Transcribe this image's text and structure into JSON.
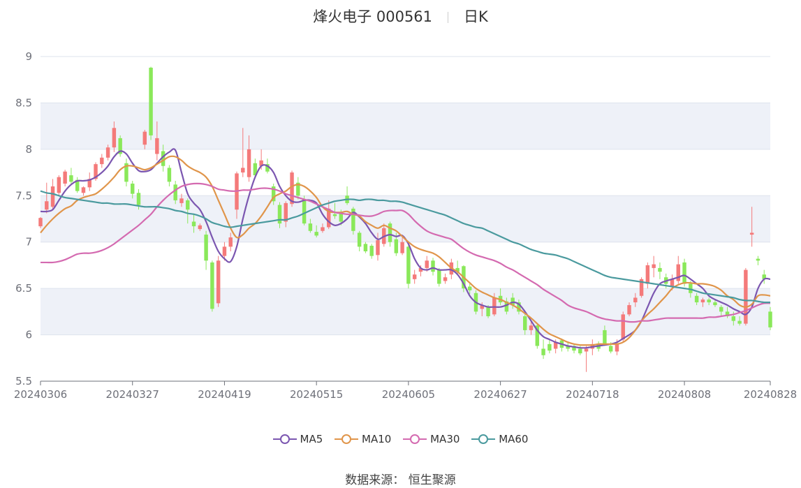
{
  "header": {
    "title": "烽火电子 000561",
    "period": "日K"
  },
  "source": {
    "label": "数据来源：",
    "value": "恒生聚源"
  },
  "colors": {
    "up": "#f47a7a",
    "down": "#8ae85a",
    "ma5": "#7b56b0",
    "ma10": "#e0954a",
    "ma30": "#d46ab0",
    "ma60": "#4a9a9e",
    "band": "#eef1f8",
    "grid": "#dde3ee",
    "axis": "#6e7079"
  },
  "chart_data": {
    "type": "candlestick",
    "ylim": [
      5.5,
      9
    ],
    "yticks": [
      5.5,
      6,
      6.5,
      7,
      7.5,
      8,
      8.5,
      9
    ],
    "xticks": [
      {
        "index": 0,
        "label": "20240306"
      },
      {
        "index": 15,
        "label": "20240327"
      },
      {
        "index": 30,
        "label": "20240419"
      },
      {
        "index": 45,
        "label": "20240515"
      },
      {
        "index": 60,
        "label": "20240605"
      },
      {
        "index": 75,
        "label": "20240627"
      },
      {
        "index": 90,
        "label": "20240718"
      },
      {
        "index": 105,
        "label": "20240808"
      },
      {
        "index": 119,
        "label": "20240828"
      }
    ],
    "ohlc": [
      [
        7.17,
        7.26,
        7.15,
        7.27
      ],
      [
        7.35,
        7.44,
        7.31,
        7.64
      ],
      [
        7.38,
        7.6,
        7.36,
        7.68
      ],
      [
        7.53,
        7.7,
        7.5,
        7.72
      ],
      [
        7.63,
        7.76,
        7.6,
        7.78
      ],
      [
        7.72,
        7.65,
        7.62,
        7.8
      ],
      [
        7.67,
        7.55,
        7.53,
        7.7
      ],
      [
        7.53,
        7.59,
        7.5,
        7.6
      ],
      [
        7.59,
        7.68,
        7.55,
        7.75
      ],
      [
        7.68,
        7.84,
        7.66,
        7.86
      ],
      [
        7.84,
        7.91,
        7.8,
        7.95
      ],
      [
        7.91,
        8.02,
        7.88,
        8.05
      ],
      [
        8.02,
        8.23,
        7.97,
        8.3
      ],
      [
        8.12,
        7.95,
        7.92,
        8.15
      ],
      [
        7.85,
        7.65,
        7.6,
        7.9
      ],
      [
        7.63,
        7.52,
        7.47,
        7.66
      ],
      [
        7.53,
        7.4,
        7.35,
        7.57
      ],
      [
        8.05,
        8.19,
        8,
        8.21
      ],
      [
        8.88,
        8.15,
        8.1,
        8.89
      ],
      [
        7.95,
        8.12,
        7.88,
        8.3
      ],
      [
        7.98,
        7.82,
        7.76,
        8.05
      ],
      [
        7.8,
        7.65,
        7.6,
        7.83
      ],
      [
        7.62,
        7.45,
        7.41,
        7.66
      ],
      [
        7.42,
        7.47,
        7.38,
        7.52
      ],
      [
        7.45,
        7.35,
        7.2,
        7.47
      ],
      [
        7.22,
        7.17,
        7.1,
        7.3
      ],
      [
        7.14,
        7.18,
        7.12,
        7.2
      ],
      [
        7.08,
        6.8,
        6.7,
        7.12
      ],
      [
        6.78,
        6.28,
        6.25,
        6.8
      ],
      [
        6.34,
        6.8,
        6.3,
        6.85
      ],
      [
        6.85,
        6.95,
        6.8,
        7
      ],
      [
        6.95,
        7.05,
        6.9,
        7.1
      ],
      [
        7.35,
        7.74,
        7.25,
        7.76
      ],
      [
        7.75,
        7.8,
        7.7,
        8.23
      ],
      [
        7.7,
        8,
        7.65,
        8.15
      ],
      [
        7.85,
        7.72,
        7.7,
        7.9
      ],
      [
        7.82,
        7.88,
        7.78,
        8
      ],
      [
        7.84,
        7.76,
        7.74,
        7.9
      ],
      [
        7.6,
        7.44,
        7.4,
        7.63
      ],
      [
        7.4,
        7.2,
        7.15,
        7.43
      ],
      [
        7.22,
        7.42,
        7.16,
        7.44
      ],
      [
        7.41,
        7.75,
        7.38,
        7.77
      ],
      [
        7.64,
        7.5,
        7.46,
        7.7
      ],
      [
        7.46,
        7.2,
        7.18,
        7.5
      ],
      [
        7.2,
        7.12,
        7.1,
        7.25
      ],
      [
        7.11,
        7.07,
        7.05,
        7.18
      ],
      [
        7.12,
        7.16,
        7.1,
        7.2
      ],
      [
        7.16,
        7.36,
        7.14,
        7.45
      ],
      [
        7.3,
        7.28,
        7.25,
        7.42
      ],
      [
        7.32,
        7.22,
        7.18,
        7.35
      ],
      [
        7.5,
        7.42,
        7.4,
        7.6
      ],
      [
        7.36,
        7.12,
        7.08,
        7.38
      ],
      [
        7.1,
        6.95,
        6.9,
        7.12
      ],
      [
        6.98,
        6.9,
        6.88,
        7
      ],
      [
        6.96,
        6.85,
        6.82,
        6.98
      ],
      [
        6.86,
        7.02,
        6.8,
        7.1
      ],
      [
        6.98,
        7.15,
        6.95,
        7.2
      ],
      [
        7.2,
        7,
        6.95,
        7.22
      ],
      [
        7.03,
        6.88,
        6.85,
        7.1
      ],
      [
        6.88,
        7,
        6.86,
        7.05
      ],
      [
        6.95,
        6.55,
        6.5,
        6.97
      ],
      [
        6.6,
        6.65,
        6.55,
        6.7
      ],
      [
        6.68,
        6.72,
        6.63,
        6.75
      ],
      [
        6.72,
        6.8,
        6.68,
        6.85
      ],
      [
        6.8,
        6.68,
        6.64,
        6.83
      ],
      [
        6.7,
        6.55,
        6.52,
        6.72
      ],
      [
        6.58,
        6.62,
        6.55,
        6.66
      ],
      [
        6.65,
        6.78,
        6.6,
        6.82
      ],
      [
        6.72,
        6.68,
        6.64,
        6.8
      ],
      [
        6.74,
        6.5,
        6.46,
        6.75
      ],
      [
        6.52,
        6.48,
        6.44,
        6.55
      ],
      [
        6.45,
        6.25,
        6.22,
        6.48
      ],
      [
        6.28,
        6.32,
        6.2,
        6.35
      ],
      [
        6.3,
        6.2,
        6.18,
        6.32
      ],
      [
        6.22,
        6.4,
        6.2,
        6.45
      ],
      [
        6.42,
        6.35,
        6.32,
        6.5
      ],
      [
        6.36,
        6.25,
        6.22,
        6.4
      ],
      [
        6.4,
        6.32,
        6.28,
        6.45
      ],
      [
        6.35,
        6.25,
        6.22,
        6.38
      ],
      [
        6.2,
        6.05,
        6,
        6.22
      ],
      [
        6.05,
        6.1,
        6,
        6.15
      ],
      [
        6.1,
        5.88,
        5.85,
        6.12
      ],
      [
        5.85,
        5.78,
        5.74,
        5.95
      ],
      [
        5.9,
        5.83,
        5.8,
        5.95
      ],
      [
        5.85,
        5.92,
        5.8,
        5.95
      ],
      [
        5.94,
        5.86,
        5.82,
        5.96
      ],
      [
        5.88,
        5.85,
        5.82,
        5.92
      ],
      [
        5.88,
        5.83,
        5.8,
        5.9
      ],
      [
        5.85,
        5.8,
        5.78,
        5.88
      ],
      [
        5.82,
        5.85,
        5.6,
        5.88
      ],
      [
        5.85,
        5.9,
        5.78,
        5.95
      ],
      [
        5.9,
        5.85,
        5.82,
        5.93
      ],
      [
        6.05,
        5.9,
        5.88,
        6.1
      ],
      [
        5.88,
        5.82,
        5.8,
        5.92
      ],
      [
        5.82,
        5.9,
        5.78,
        5.95
      ],
      [
        5.95,
        6.22,
        5.92,
        6.25
      ],
      [
        6.22,
        6.32,
        6.2,
        6.35
      ],
      [
        6.35,
        6.4,
        6.3,
        6.45
      ],
      [
        6.42,
        6.6,
        6.4,
        6.62
      ],
      [
        6.55,
        6.75,
        6.5,
        6.78
      ],
      [
        6.72,
        6.76,
        6.62,
        6.85
      ],
      [
        6.72,
        6.68,
        6.6,
        6.78
      ],
      [
        6.62,
        6.55,
        6.5,
        6.66
      ],
      [
        6.52,
        6.6,
        6.48,
        6.65
      ],
      [
        6.58,
        6.76,
        6.55,
        6.85
      ],
      [
        6.78,
        6.55,
        6.52,
        6.82
      ],
      [
        6.55,
        6.45,
        6.4,
        6.58
      ],
      [
        6.42,
        6.35,
        6.32,
        6.45
      ],
      [
        6.35,
        6.38,
        6.3,
        6.4
      ],
      [
        6.38,
        6.35,
        6.32,
        6.4
      ],
      [
        6.35,
        6.32,
        6.3,
        6.38
      ],
      [
        6.3,
        6.25,
        6.2,
        6.32
      ],
      [
        6.25,
        6.2,
        6.18,
        6.3
      ],
      [
        6.2,
        6.15,
        6.1,
        6.25
      ],
      [
        6.15,
        6.12,
        6.1,
        6.2
      ],
      [
        6.12,
        6.7,
        6.1,
        6.72
      ],
      [
        7.08,
        7.1,
        6.95,
        7.38
      ],
      [
        6.82,
        6.8,
        6.75,
        6.85
      ],
      [
        6.65,
        6.6,
        6.55,
        6.7
      ],
      [
        6.25,
        6.08,
        6.05,
        6.3
      ]
    ],
    "series": [
      {
        "name": "MA5",
        "values": [
          7.33,
          7.33,
          7.35,
          7.45,
          7.55,
          7.62,
          7.66,
          7.66,
          7.67,
          7.7,
          7.75,
          7.82,
          7.92,
          7.98,
          7.95,
          7.85,
          7.77,
          7.76,
          7.78,
          7.85,
          7.92,
          7.97,
          7.99,
          7.75,
          7.52,
          7.42,
          7.35,
          7.22,
          7.05,
          6.9,
          6.82,
          6.79,
          6.95,
          7.25,
          7.5,
          7.7,
          7.82,
          7.82,
          7.75,
          7.6,
          7.5,
          7.44,
          7.43,
          7.45,
          7.45,
          7.42,
          7.3,
          7.22,
          7.18,
          7.2,
          7.25,
          7.32,
          7.27,
          7.2,
          7.1,
          7.03,
          7.06,
          7.08,
          7.06,
          7.07,
          6.98,
          6.82,
          6.72,
          6.7,
          6.72,
          6.7,
          6.7,
          6.7,
          6.65,
          6.55,
          6.42,
          6.35,
          6.32,
          6.3,
          6.3,
          6.3,
          6.32,
          6.35,
          6.33,
          6.25,
          6.15,
          6.05,
          5.98,
          5.95,
          5.92,
          5.9,
          5.88,
          5.87,
          5.86,
          5.86,
          5.87,
          5.88,
          5.89,
          5.9,
          5.92,
          5.96,
          6,
          6.05,
          6.15,
          6.3,
          6.45,
          6.55,
          6.58,
          6.6,
          6.62,
          6.64,
          6.6,
          6.55,
          6.5,
          6.42,
          6.38,
          6.35,
          6.32,
          6.28,
          6.25,
          6.22,
          6.3,
          6.5,
          6.6,
          6.6
        ]
      },
      {
        "name": "MA10",
        "values": [
          7.1,
          7.18,
          7.25,
          7.31,
          7.36,
          7.39,
          7.45,
          7.48,
          7.5,
          7.52,
          7.57,
          7.63,
          7.7,
          7.78,
          7.82,
          7.82,
          7.8,
          7.78,
          7.8,
          7.84,
          7.88,
          7.92,
          7.92,
          7.88,
          7.82,
          7.78,
          7.75,
          7.7,
          7.6,
          7.45,
          7.3,
          7.15,
          7.05,
          7.08,
          7.15,
          7.2,
          7.28,
          7.38,
          7.48,
          7.52,
          7.55,
          7.6,
          7.62,
          7.6,
          7.55,
          7.48,
          7.38,
          7.33,
          7.32,
          7.32,
          7.33,
          7.3,
          7.28,
          7.22,
          7.18,
          7.15,
          7.18,
          7.15,
          7.12,
          7.06,
          7,
          6.95,
          6.92,
          6.9,
          6.88,
          6.84,
          6.78,
          6.72,
          6.68,
          6.62,
          6.56,
          6.5,
          6.46,
          6.43,
          6.4,
          6.38,
          6.35,
          6.32,
          6.28,
          6.23,
          6.18,
          6.12,
          6.06,
          6.01,
          5.98,
          5.95,
          5.92,
          5.9,
          5.89,
          5.89,
          5.89,
          5.9,
          5.9,
          5.9,
          5.9,
          5.92,
          5.97,
          6.05,
          6.15,
          6.22,
          6.28,
          6.35,
          6.42,
          6.5,
          6.54,
          6.56,
          6.56,
          6.55,
          6.55,
          6.54,
          6.52,
          6.48,
          6.42,
          6.38,
          6.32,
          6.3,
          6.33,
          6.42,
          6.43,
          6.42
        ]
      },
      {
        "name": "MA30",
        "values": [
          6.78,
          6.78,
          6.78,
          6.79,
          6.81,
          6.84,
          6.87,
          6.88,
          6.88,
          6.89,
          6.91,
          6.94,
          6.98,
          7.03,
          7.08,
          7.13,
          7.18,
          7.24,
          7.3,
          7.38,
          7.45,
          7.51,
          7.56,
          7.6,
          7.62,
          7.63,
          7.63,
          7.62,
          7.6,
          7.57,
          7.56,
          7.55,
          7.55,
          7.56,
          7.56,
          7.57,
          7.58,
          7.58,
          7.57,
          7.55,
          7.52,
          7.5,
          7.48,
          7.46,
          7.44,
          7.41,
          7.38,
          7.35,
          7.32,
          7.31,
          7.3,
          7.3,
          7.29,
          7.28,
          7.28,
          7.3,
          7.33,
          7.34,
          7.34,
          7.34,
          7.3,
          7.23,
          7.17,
          7.12,
          7.09,
          7.07,
          7.05,
          7.03,
          6.98,
          6.93,
          6.89,
          6.86,
          6.84,
          6.82,
          6.8,
          6.77,
          6.73,
          6.7,
          6.66,
          6.62,
          6.58,
          6.54,
          6.49,
          6.45,
          6.41,
          6.37,
          6.32,
          6.29,
          6.27,
          6.25,
          6.22,
          6.19,
          6.17,
          6.16,
          6.15,
          6.15,
          6.14,
          6.14,
          6.15,
          6.15,
          6.16,
          6.17,
          6.18,
          6.18,
          6.18,
          6.18,
          6.18,
          6.18,
          6.18,
          6.19,
          6.19,
          6.2,
          6.21,
          6.22,
          6.24,
          6.26,
          6.29,
          6.32,
          6.34,
          6.34
        ]
      },
      {
        "name": "MA60",
        "values": [
          7.55,
          7.53,
          7.52,
          7.5,
          7.48,
          7.47,
          7.46,
          7.45,
          7.44,
          7.43,
          7.42,
          7.42,
          7.41,
          7.41,
          7.41,
          7.4,
          7.39,
          7.38,
          7.38,
          7.38,
          7.37,
          7.36,
          7.34,
          7.33,
          7.31,
          7.3,
          7.28,
          7.25,
          7.21,
          7.19,
          7.17,
          7.16,
          7.17,
          7.18,
          7.19,
          7.2,
          7.21,
          7.22,
          7.23,
          7.24,
          7.24,
          7.26,
          7.28,
          7.31,
          7.34,
          7.37,
          7.4,
          7.42,
          7.44,
          7.45,
          7.46,
          7.46,
          7.45,
          7.46,
          7.46,
          7.45,
          7.45,
          7.44,
          7.44,
          7.43,
          7.41,
          7.39,
          7.37,
          7.35,
          7.33,
          7.31,
          7.29,
          7.26,
          7.23,
          7.2,
          7.18,
          7.16,
          7.15,
          7.12,
          7.09,
          7.06,
          7.03,
          7,
          6.98,
          6.95,
          6.92,
          6.9,
          6.88,
          6.87,
          6.86,
          6.84,
          6.82,
          6.79,
          6.76,
          6.73,
          6.7,
          6.67,
          6.64,
          6.62,
          6.61,
          6.6,
          6.59,
          6.58,
          6.57,
          6.56,
          6.55,
          6.54,
          6.53,
          6.52,
          6.51,
          6.5,
          6.49,
          6.47,
          6.45,
          6.44,
          6.43,
          6.42,
          6.41,
          6.4,
          6.38,
          6.37,
          6.37,
          6.36,
          6.35,
          6.35
        ]
      }
    ],
    "legend": {
      "position": "bottom",
      "items": [
        "MA5",
        "MA10",
        "MA30",
        "MA60"
      ]
    },
    "grid": true
  }
}
